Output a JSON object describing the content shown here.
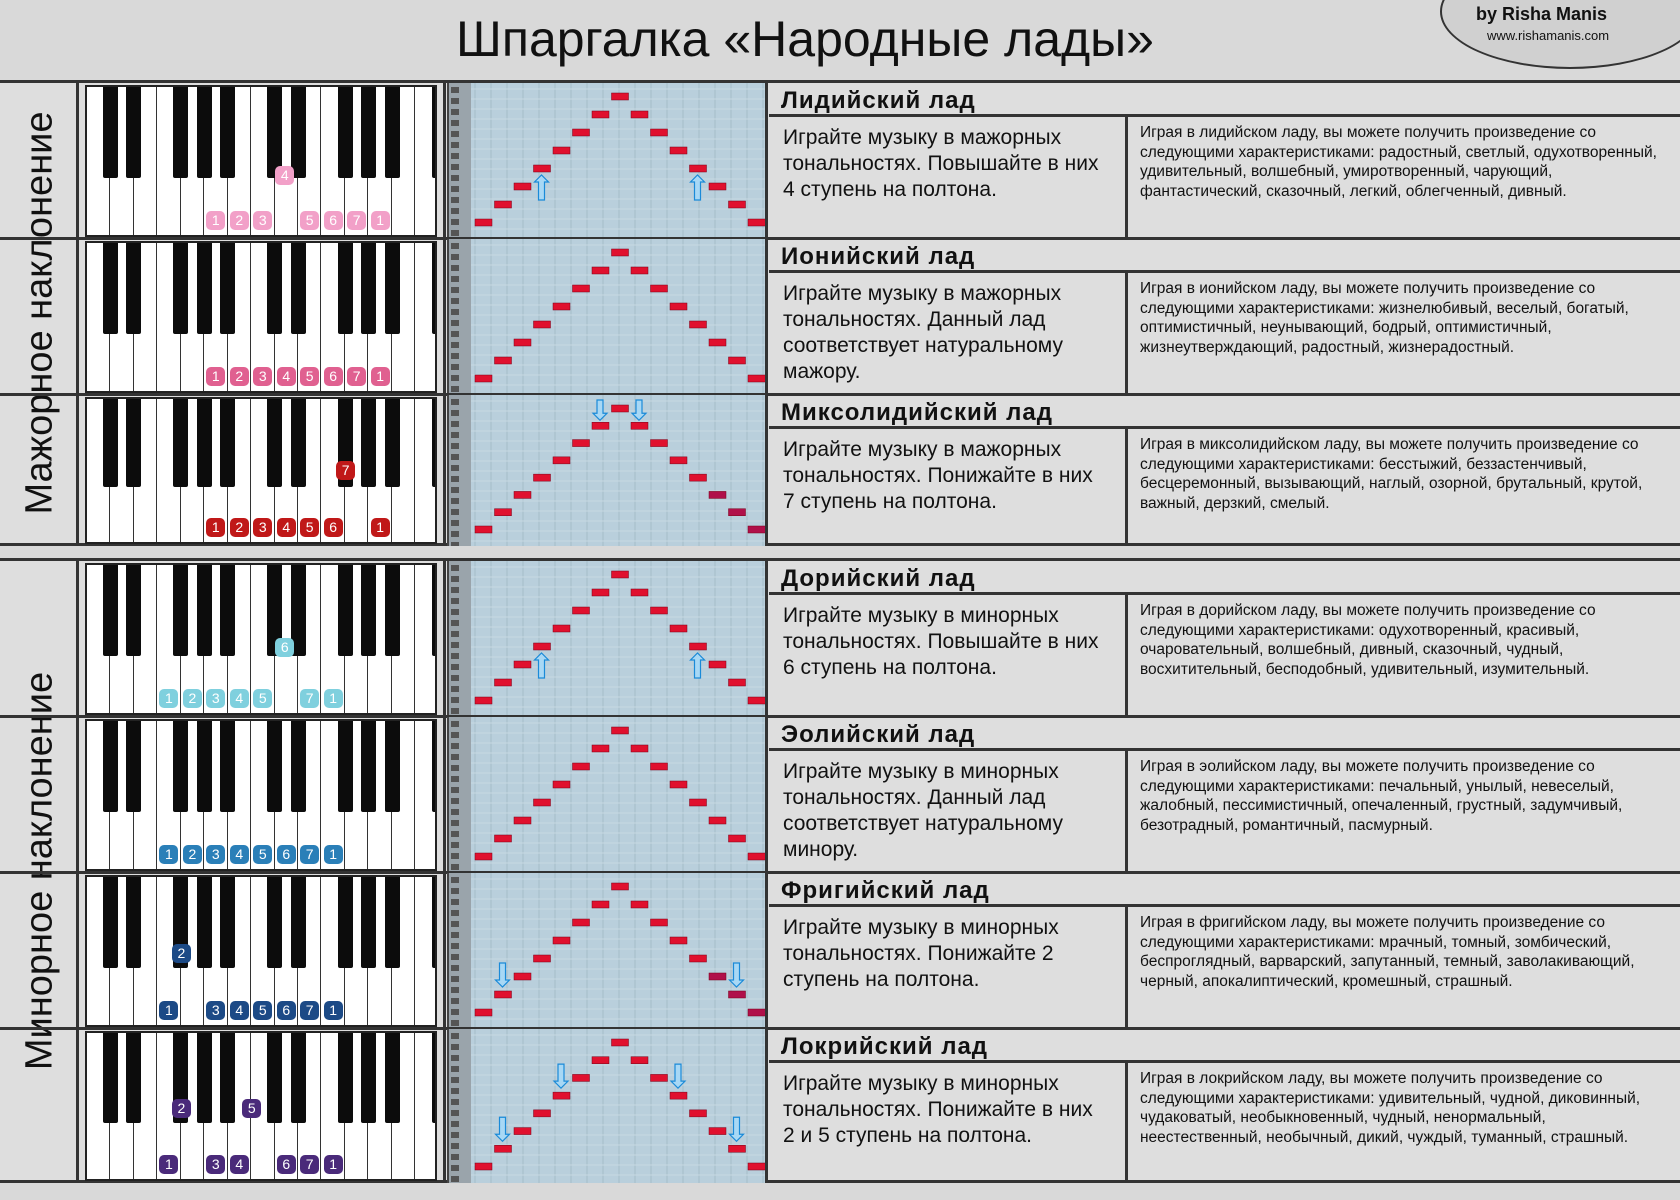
{
  "title": "Шпаргалка «Народные лады»",
  "author": {
    "name": "by Risha Manis",
    "url": "www.rishamanis.com"
  },
  "sections": [
    {
      "label": "Мажорное наклонение"
    },
    {
      "label": "Минорное наклонение"
    }
  ],
  "modes": [
    {
      "name": "Лидийский лад",
      "desc": "Играйте музыку в мажорных тональностях. Повышайте в них 4 ступень на полтона.",
      "char": "Играя в лидийском ладу, вы можете получить произведение со следующими характеристиками: радостный, светлый, одухотворенный, удивительный, волшебный, умиротворенный, чарующий, фантастический, сказочный, легкий, облегченный, дивный.",
      "color": "#f2a0c8",
      "keys": [
        "1",
        "2",
        "3",
        "",
        "5",
        "6",
        "7",
        "1"
      ],
      "raised": "4",
      "arrows": "up"
    },
    {
      "name": "Ионийский лад",
      "desc": "Играйте музыку в мажорных тональностях. Данный лад соответствует натуральному мажору.",
      "char": "Играя в ионийском ладу, вы можете получить произведение со следующими характеристиками: жизнелюбивый, веселый, богатый, оптимистичный, неунывающий, бодрый, оптимистичный, жизнеутверждающий, радостный, жизнерадостный.",
      "color": "#e06090",
      "keys": [
        "1",
        "2",
        "3",
        "4",
        "5",
        "6",
        "7",
        "1"
      ],
      "raised": "",
      "arrows": "none"
    },
    {
      "name": "Миксолидийский лад",
      "desc": "Играйте музыку в мажорных тональностях. Понижайте в них 7 ступень на полтона.",
      "char": "Играя в миксолидийском ладу, вы можете получить произведение со следующими характеристиками: бесстыжий, беззастенчивый, бесцеремонный, вызывающий, наглый, озорной, брутальный, крутой, важный, дерзкий, смелый.",
      "color": "#c01818",
      "keys": [
        "1",
        "2",
        "3",
        "4",
        "5",
        "6",
        "",
        "1"
      ],
      "raised": "7",
      "arrows": "down-top"
    },
    {
      "name": "Дорийский лад",
      "desc": "Играйте музыку в минорных тональностях. Повышайте в них 6 ступень на полтона.",
      "char": "Играя в дорийском ладу, вы можете получить произведение со следующими характеристиками: одухотворенный, красивый, очаровательный, волшебный, дивный, сказочный, чудный, восхитительный, бесподобный, удивительный, изумительный.",
      "color": "#7fd0de",
      "keys": [
        "1",
        "2",
        "3",
        "4",
        "5",
        "",
        "7",
        "1"
      ],
      "raised": "6",
      "arrows": "up"
    },
    {
      "name": "Эолийский лад",
      "desc": "Играйте музыку в минорных тональностях. Данный лад соответствует натуральному минору.",
      "char": "Играя в эолийском ладу, вы можете получить произведение со следующими характеристиками: печальный, унылый, невеселый, жалобный, пессимистичный, опечаленный, грустный, задумчивый, безотрадный, романтичный, пасмурный.",
      "color": "#2a7fb8",
      "keys": [
        "1",
        "2",
        "3",
        "4",
        "5",
        "6",
        "7",
        "1"
      ],
      "raised": "",
      "arrows": "none"
    },
    {
      "name": "Фригийский лад",
      "desc": "Играйте музыку в минорных тональностях. Понижайте 2 ступень на полтона.",
      "char": "Играя в фригийском ладу, вы можете получить произведение со следующими характеристиками: мрачный, томный, зомбический, беспроглядный, варварский, запутанный, темный, заволакивающий, черный, апокалиптический, кромешный, страшный.",
      "color": "#1c4a86",
      "keys": [
        "1",
        "",
        "3",
        "4",
        "5",
        "6",
        "7",
        "1"
      ],
      "raised": "2",
      "arrows": "down-bottom"
    },
    {
      "name": "Локрийский лад",
      "desc": "Играйте музыку в минорных тональностях. Понижайте в них 2 и 5 ступень на полтона.",
      "char": "Играя в локрийском ладу, вы можете получить произведение со следующими характеристиками: удивительный, чудной, диковинный, чудаковатый, необыкновенный, чудный, ненормальный, неестественный, необычный, дикий, чуждый, туманный, страшный.",
      "color": "#4a2a7a",
      "keys": [
        "1",
        "",
        "3",
        "4",
        "",
        "6",
        "7",
        "1"
      ],
      "raised": "2,5",
      "arrows": "down-both"
    }
  ]
}
